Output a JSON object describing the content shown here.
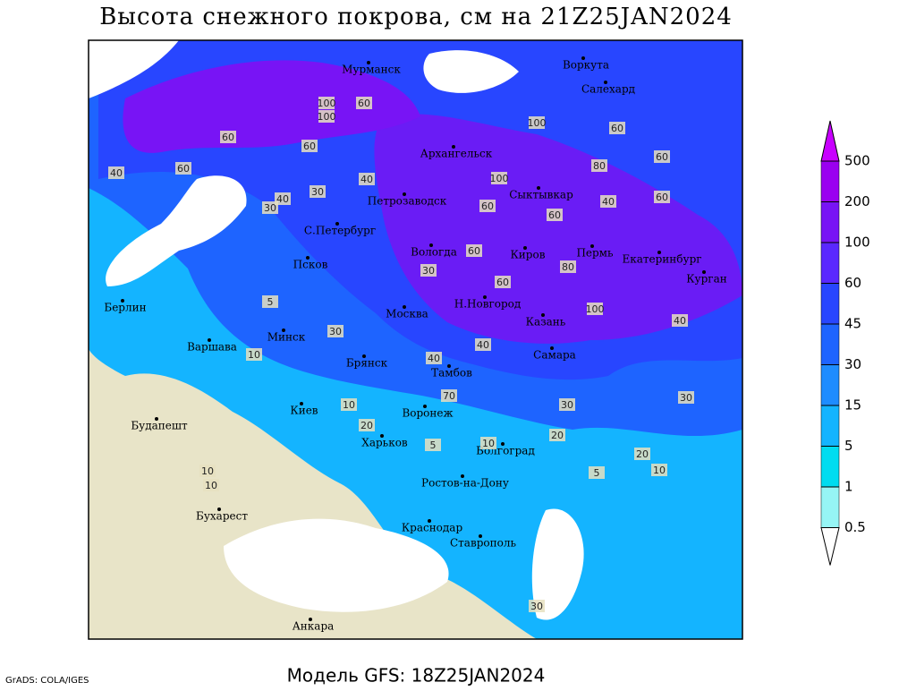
{
  "header": {
    "title": "Высота снежного покрова, см на 21Z25JAN2024"
  },
  "footer": {
    "model": "Модель GFS: 18Z25JAN2024",
    "credit": "GrADS: COLA/IGES"
  },
  "cities": [
    "Мурманск",
    "Воркута",
    "Салехард",
    "Архангельск",
    "Сыктывкар",
    "Петрозаводск",
    "С.Петербург",
    "Вологда",
    "Киров",
    "Пермь",
    "Екатеринбург",
    "Курган",
    "Псков",
    "Берлин",
    "Н.Новгород",
    "Москва",
    "Казань",
    "Минск",
    "Варшава",
    "Самара",
    "Брянск",
    "Тамбов",
    "Киев",
    "Воронеж",
    "Будапешт",
    "Харьков",
    "Волгоград",
    "Ростов-на-Дону",
    "Бухарест",
    "Краснодар",
    "Ставрополь",
    "Анкара"
  ],
  "contour_labels": [
    100,
    100,
    60,
    60,
    60,
    40,
    30,
    30,
    60,
    40,
    100,
    60,
    100,
    60,
    60,
    80,
    60,
    40,
    60,
    60,
    80,
    30,
    40,
    60,
    100,
    40,
    30,
    10,
    5,
    10,
    40,
    30,
    70,
    30,
    20,
    20,
    10,
    20,
    10,
    5,
    10,
    5,
    10,
    30,
    40
  ],
  "colorbar": {
    "levels": [
      500,
      200,
      100,
      60,
      45,
      30,
      15,
      5,
      1,
      0.5
    ],
    "colors": [
      "#c800ff",
      "#9a00f0",
      "#7814f5",
      "#5a28ff",
      "#2846ff",
      "#1e64ff",
      "#1e8cff",
      "#14b4ff",
      "#00dcf0",
      "#96f5f5",
      "#ffffff"
    ]
  }
}
